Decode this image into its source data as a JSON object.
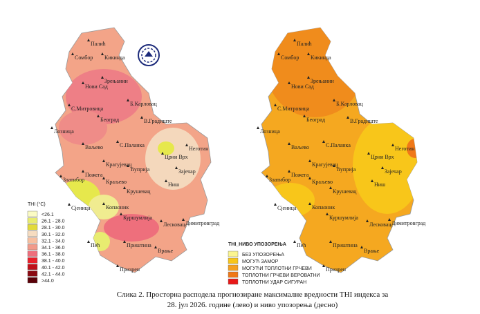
{
  "cities": [
    "Палић",
    "Кикинда",
    "Сомбор",
    "Нови Сад",
    "Зрењанин",
    "С.Митровица",
    "Б.Карловац",
    "Лозница",
    "Београд",
    "В.Градиште",
    "Ваљево",
    "С.Паланка",
    "Неготин",
    "Црни Врх",
    "Зајечар",
    "Крагујевац",
    "Ћуприја",
    "Пожега",
    "Златибор",
    "Краљево",
    "Ниш",
    "Крушевац",
    "Сјеница",
    "Копаоник",
    "Куршумлија",
    "Лесковац",
    "Димитровград",
    "Пећ",
    "Приштина",
    "Врање",
    "Призрен"
  ],
  "thi_legend": {
    "title": "THI (°C)",
    "items": [
      {
        "label": "<26.1",
        "color": "#fbfbc4"
      },
      {
        "label": "26.1 - 28.0",
        "color": "#e8ec70"
      },
      {
        "label": "28.1 - 30.0",
        "color": "#e2da3a"
      },
      {
        "label": "30.1 - 32.0",
        "color": "#f6dcc0"
      },
      {
        "label": "32.1 - 34.0",
        "color": "#f7bfa0"
      },
      {
        "label": "34.1 - 36.0",
        "color": "#f29a8a"
      },
      {
        "label": "36.1 - 38.0",
        "color": "#ee6f7c"
      },
      {
        "label": "38.1 - 40.0",
        "color": "#e8202a"
      },
      {
        "label": "40.1 - 42.0",
        "color": "#c0101a"
      },
      {
        "label": "42.1 - 44.0",
        "color": "#8a0a12"
      },
      {
        "label": ">44.0",
        "color": "#5a0008"
      }
    ]
  },
  "warning_legend": {
    "title": "THI_НИВО УПОЗОРЕЊА",
    "items": [
      {
        "label": "БЕЗ УПОЗОРЕЊА",
        "color": "#fbf590"
      },
      {
        "label": "МОГУЋ ЗАМОР",
        "color": "#f8c61a"
      },
      {
        "label": "МОГУЋИ ТОПЛОТНИ ГРЧЕВИ",
        "color": "#f5a020"
      },
      {
        "label": "ТОПЛОТНИ ГРЧЕВИ ВЕРОВАТНИ",
        "color": "#f07818"
      },
      {
        "label": "ТОПЛОТНИ УДАР СИГУРАН",
        "color": "#e81818"
      }
    ]
  },
  "caption": [
    "Слика 2. Просторна расподела прогнозиране максималне вредности THI индекса за",
    "28. јул 2026. године (лево) и ниво упозорења (десно)"
  ]
}
